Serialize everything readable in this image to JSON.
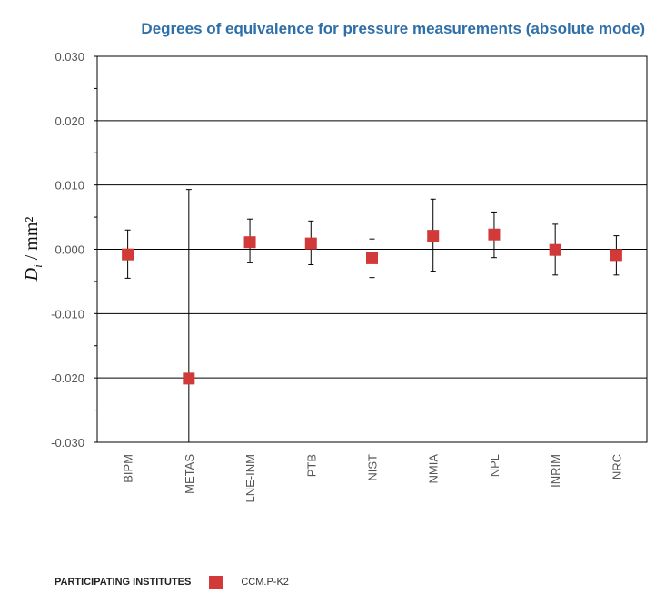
{
  "chart_data": {
    "type": "scatter",
    "title": "Degrees of equivalence for pressure measurements (absolute mode)",
    "ylabel": {
      "symbol": "D",
      "subscript": "i",
      "unit": " / mm²"
    },
    "ylim": [
      -0.03,
      0.03
    ],
    "yticks": [
      0.03,
      0.02,
      0.01,
      0.0,
      -0.01,
      -0.02,
      -0.03
    ],
    "ytick_labels": [
      "0.030",
      "0.020",
      "0.010",
      "0.000",
      "-0.010",
      "-0.020",
      "-0.030"
    ],
    "categories": [
      "BIPM",
      "METAS",
      "LNE-INM",
      "PTB",
      "NIST",
      "NMIA",
      "NPL",
      "INRIM",
      "NRC"
    ],
    "series": [
      {
        "name": "CCM.P-K2",
        "values": [
          -0.0008,
          -0.0201,
          0.0011,
          0.0009,
          -0.0014,
          0.0021,
          0.0023,
          -0.0001,
          -0.0009
        ],
        "err_upper": [
          0.003,
          0.0093,
          0.0047,
          0.0044,
          0.0016,
          0.0078,
          0.0058,
          0.0039,
          0.0021
        ],
        "err_lower": [
          -0.0045,
          -0.03,
          -0.0021,
          -0.0024,
          -0.0044,
          -0.0034,
          -0.0013,
          -0.004,
          -0.004
        ]
      }
    ],
    "grid": true,
    "legend_position": "bottom-left",
    "colors": {
      "marker": "#d23a3a",
      "title": "#2e6fa8"
    }
  },
  "legend": {
    "title": "PARTICIPATING INSTITUTES",
    "series_label": "CCM.P-K2"
  }
}
